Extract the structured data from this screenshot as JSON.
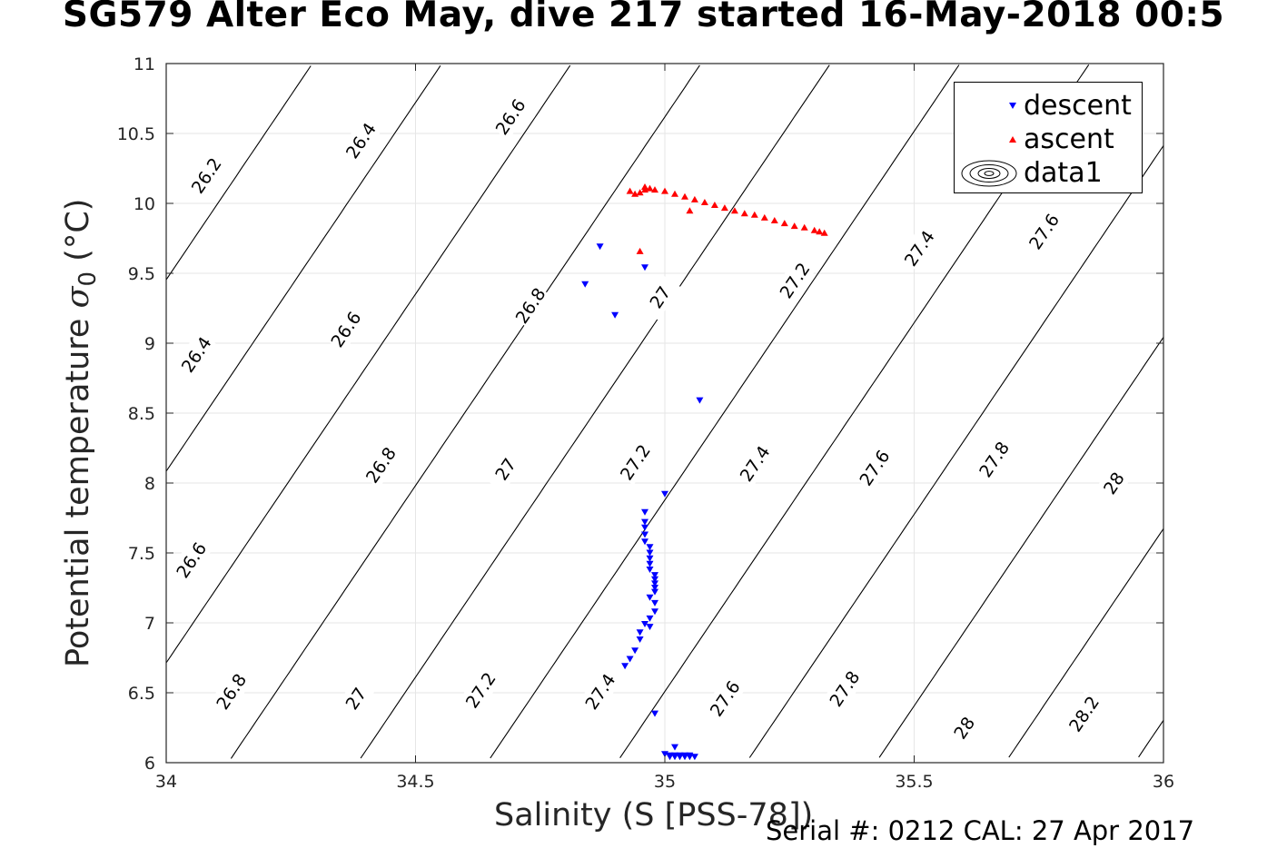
{
  "title": "SG579 Alter Eco May, dive 217 started 16-May-2018 00:5",
  "footer": "Serial #: 0212  CAL: 27 Apr 2017",
  "colors": {
    "descent": "#0000ff",
    "ascent": "#ff0000",
    "contour": "#000000",
    "grid": "#e6e6e6"
  },
  "chart_data": {
    "type": "scatter",
    "title": "SG579 Alter Eco May, dive 217 started 16-May-2018 00:5",
    "xlabel": "Salinity (S [PSS-78])",
    "ylabel_prefix": "Potential temperature ",
    "ylabel_symbol": "σ",
    "ylabel_subscript": "0",
    "ylabel_suffix": " (°C)",
    "xlim": [
      34,
      36
    ],
    "ylim": [
      6,
      11
    ],
    "xticks": [
      "34",
      "34.5",
      "35",
      "35.5",
      "36"
    ],
    "yticks": [
      "6",
      "6.5",
      "7",
      "7.5",
      "8",
      "8.5",
      "9",
      "9.5",
      "10",
      "10.5",
      "11"
    ],
    "grid": true,
    "legend_position": "top-right",
    "legend": [
      "descent",
      "ascent",
      "data1"
    ],
    "contour_levels": [
      "26.2",
      "26.4",
      "26.6",
      "26.8",
      "27",
      "27.2",
      "27.4",
      "27.6",
      "27.8",
      "28",
      "28.2"
    ],
    "contour_labels": [
      {
        "text": "26.2",
        "s": 34.08,
        "t": 10.2
      },
      {
        "text": "26.4",
        "s": 34.39,
        "t": 10.45
      },
      {
        "text": "26.6",
        "s": 34.69,
        "t": 10.62
      },
      {
        "text": "26.4",
        "s": 34.06,
        "t": 8.92
      },
      {
        "text": "26.6",
        "s": 34.36,
        "t": 9.1
      },
      {
        "text": "26.8",
        "s": 34.73,
        "t": 9.27
      },
      {
        "text": "27",
        "s": 34.99,
        "t": 9.33
      },
      {
        "text": "27.2",
        "s": 35.26,
        "t": 9.45
      },
      {
        "text": "27.4",
        "s": 35.51,
        "t": 9.68
      },
      {
        "text": "27.6",
        "s": 35.76,
        "t": 9.8
      },
      {
        "text": "26.6",
        "s": 34.05,
        "t": 7.45
      },
      {
        "text": "26.8",
        "s": 34.43,
        "t": 8.13
      },
      {
        "text": "27",
        "s": 34.68,
        "t": 8.1
      },
      {
        "text": "27.2",
        "s": 34.94,
        "t": 8.15
      },
      {
        "text": "27.4",
        "s": 35.18,
        "t": 8.14
      },
      {
        "text": "27.6",
        "s": 35.42,
        "t": 8.11
      },
      {
        "text": "27.8",
        "s": 35.66,
        "t": 8.17
      },
      {
        "text": "28",
        "s": 35.9,
        "t": 8.0
      },
      {
        "text": "26.8",
        "s": 34.13,
        "t": 6.51
      },
      {
        "text": "27",
        "s": 34.38,
        "t": 6.46
      },
      {
        "text": "27.2",
        "s": 34.63,
        "t": 6.52
      },
      {
        "text": "27.4",
        "s": 34.87,
        "t": 6.51
      },
      {
        "text": "27.6",
        "s": 35.12,
        "t": 6.46
      },
      {
        "text": "27.8",
        "s": 35.36,
        "t": 6.53
      },
      {
        "text": "28",
        "s": 35.6,
        "t": 6.25
      },
      {
        "text": "28.2",
        "s": 35.84,
        "t": 6.35
      }
    ],
    "series": [
      {
        "name": "descent",
        "marker": "triangle-down",
        "points": [
          [
            34.84,
            9.42
          ],
          [
            34.87,
            9.69
          ],
          [
            34.9,
            9.2
          ],
          [
            34.96,
            9.54
          ],
          [
            35.07,
            8.59
          ],
          [
            35.0,
            7.92
          ],
          [
            34.96,
            7.79
          ],
          [
            34.96,
            7.72
          ],
          [
            34.96,
            7.68
          ],
          [
            34.96,
            7.63
          ],
          [
            34.96,
            7.58
          ],
          [
            34.97,
            7.54
          ],
          [
            34.97,
            7.5
          ],
          [
            34.97,
            7.46
          ],
          [
            34.97,
            7.42
          ],
          [
            34.97,
            7.38
          ],
          [
            34.98,
            7.34
          ],
          [
            34.98,
            7.31
          ],
          [
            34.98,
            7.28
          ],
          [
            34.98,
            7.25
          ],
          [
            34.98,
            7.22
          ],
          [
            34.97,
            7.18
          ],
          [
            34.98,
            7.14
          ],
          [
            34.98,
            7.08
          ],
          [
            34.97,
            7.03
          ],
          [
            34.96,
            6.99
          ],
          [
            34.97,
            6.97
          ],
          [
            34.95,
            6.93
          ],
          [
            34.95,
            6.88
          ],
          [
            34.94,
            6.8
          ],
          [
            34.93,
            6.74
          ],
          [
            34.92,
            6.69
          ],
          [
            34.98,
            6.35
          ],
          [
            35.02,
            6.11
          ],
          [
            35.0,
            6.06
          ],
          [
            35.01,
            6.05
          ],
          [
            35.01,
            6.04
          ],
          [
            35.02,
            6.05
          ],
          [
            35.02,
            6.04
          ],
          [
            35.03,
            6.04
          ],
          [
            35.03,
            6.05
          ],
          [
            35.04,
            6.04
          ],
          [
            35.04,
            6.05
          ],
          [
            35.05,
            6.04
          ],
          [
            35.05,
            6.05
          ],
          [
            35.06,
            6.04
          ]
        ]
      },
      {
        "name": "ascent",
        "marker": "triangle-up",
        "points": [
          [
            34.93,
            10.09
          ],
          [
            34.94,
            10.07
          ],
          [
            34.95,
            10.08
          ],
          [
            34.96,
            10.1
          ],
          [
            34.96,
            10.12
          ],
          [
            34.97,
            10.11
          ],
          [
            34.95,
            9.66
          ],
          [
            35.05,
            9.95
          ],
          [
            34.98,
            10.1
          ],
          [
            35.0,
            10.09
          ],
          [
            35.02,
            10.07
          ],
          [
            35.04,
            10.05
          ],
          [
            35.06,
            10.03
          ],
          [
            35.08,
            10.01
          ],
          [
            35.1,
            9.99
          ],
          [
            35.12,
            9.97
          ],
          [
            35.14,
            9.95
          ],
          [
            35.16,
            9.93
          ],
          [
            35.18,
            9.92
          ],
          [
            35.2,
            9.9
          ],
          [
            35.22,
            9.88
          ],
          [
            35.24,
            9.86
          ],
          [
            35.26,
            9.84
          ],
          [
            35.28,
            9.83
          ],
          [
            35.3,
            9.81
          ],
          [
            35.31,
            9.8
          ],
          [
            35.32,
            9.79
          ]
        ]
      }
    ]
  }
}
